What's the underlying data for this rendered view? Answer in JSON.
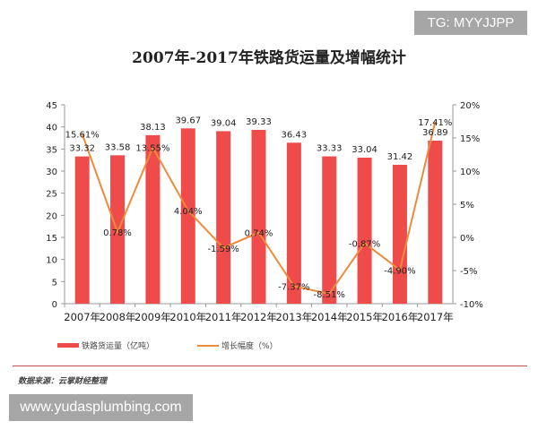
{
  "watermark_top": "TG: MYYJJPP",
  "watermark_bottom": "www.yudasplumbing.com",
  "source": "数据来源：云掌财经整理",
  "chart_data": {
    "type": "bar+line",
    "title": "2007年-2017年铁路货运量及增幅统计",
    "categories": [
      "2007年",
      "2008年",
      "2009年",
      "2010年",
      "2011年",
      "2012年",
      "2013年",
      "2014年",
      "2015年",
      "2016年",
      "2017年"
    ],
    "series": [
      {
        "name": "铁路货运量（亿吨）",
        "type": "bar",
        "axis": "left",
        "color": "#f04b4b",
        "values": [
          33.32,
          33.58,
          38.13,
          39.67,
          39.04,
          39.33,
          36.43,
          33.33,
          33.04,
          31.42,
          36.89
        ],
        "labels": [
          "33.32",
          "33.58",
          "38.13",
          "39.67",
          "39.04",
          "39.33",
          "36.43",
          "33.33",
          "33.04",
          "31.42",
          "36.89"
        ]
      },
      {
        "name": "增长幅度（%）",
        "type": "line",
        "axis": "right",
        "color": "#ed8b3b",
        "values": [
          15.61,
          0.78,
          13.55,
          4.04,
          -1.59,
          0.74,
          -7.37,
          -8.51,
          -0.87,
          -4.9,
          17.41
        ],
        "labels": [
          "15.61%",
          "0.78%",
          "13.55%",
          "4.04%",
          "-1.59%",
          "0.74%",
          "-7.37%",
          "-8.51%",
          "-0.87%",
          "-4.90%",
          "17.41%"
        ]
      }
    ],
    "y_left": {
      "range": [
        0,
        45
      ],
      "ticks": [
        "0",
        "5",
        "10",
        "15",
        "20",
        "25",
        "30",
        "35",
        "40",
        "45"
      ]
    },
    "y_right": {
      "range": [
        -10,
        20
      ],
      "ticks": [
        "-10%",
        "-5%",
        "0%",
        "5%",
        "10%",
        "15%",
        "20%"
      ]
    },
    "grid": false,
    "legend_placement": "bottom"
  }
}
